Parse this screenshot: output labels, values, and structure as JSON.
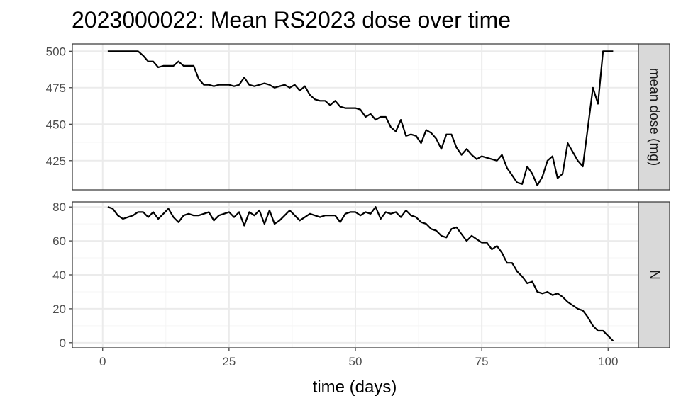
{
  "chart_data": {
    "type": "line",
    "title": "2023000022: Mean RS2023 dose over time",
    "xlabel": "time (days)",
    "xlim": [
      -6,
      106
    ],
    "x_ticks": [
      0,
      25,
      50,
      75,
      100
    ],
    "grid": true,
    "colors": {
      "line": "#000000",
      "strip_bg": "#d9d9d9",
      "grid_major": "#ebebeb",
      "grid_minor": "#f5f5f5",
      "panel_border": "#333333"
    },
    "facets": [
      {
        "strip_label": "mean dose (mg)",
        "ylim": [
          405,
          505
        ],
        "y_ticks": [
          425,
          450,
          475,
          500
        ],
        "x": [
          1,
          2,
          3,
          4,
          5,
          6,
          7,
          8,
          9,
          10,
          11,
          12,
          13,
          14,
          15,
          16,
          17,
          18,
          19,
          20,
          21,
          22,
          23,
          24,
          25,
          26,
          27,
          28,
          29,
          30,
          31,
          32,
          33,
          34,
          35,
          36,
          37,
          38,
          39,
          40,
          41,
          42,
          43,
          44,
          45,
          46,
          47,
          48,
          49,
          50,
          51,
          52,
          53,
          54,
          55,
          56,
          57,
          58,
          59,
          60,
          61,
          62,
          63,
          64,
          65,
          66,
          67,
          68,
          69,
          70,
          71,
          72,
          73,
          74,
          75,
          76,
          77,
          78,
          79,
          80,
          81,
          82,
          83,
          84,
          85,
          86,
          87,
          88,
          89,
          90,
          91,
          92,
          93,
          94,
          95,
          96,
          97,
          98,
          99,
          100,
          101
        ],
        "y": [
          500,
          500,
          500,
          500,
          500,
          500,
          500,
          497,
          493,
          493,
          489,
          490,
          490,
          490,
          493,
          490,
          490,
          490,
          481,
          477,
          477,
          476,
          477,
          477,
          477,
          476,
          477,
          482,
          477,
          476,
          477,
          478,
          477,
          475,
          476,
          477,
          475,
          477,
          473,
          476,
          470,
          467,
          466,
          466,
          463,
          466,
          462,
          461,
          461,
          461,
          460,
          455,
          457,
          453,
          455,
          455,
          448,
          445,
          453,
          442,
          443,
          442,
          437,
          446,
          444,
          440,
          433,
          443,
          443,
          434,
          429,
          433,
          429,
          426,
          428,
          427,
          426,
          425,
          429,
          420,
          415,
          410,
          409,
          421,
          416,
          408,
          414,
          425,
          428,
          413,
          416,
          437,
          431,
          425,
          421,
          448,
          475,
          464,
          500,
          500,
          500
        ]
      },
      {
        "strip_label": "N",
        "ylim": [
          -3,
          83
        ],
        "y_ticks": [
          0,
          20,
          40,
          60,
          80
        ],
        "x": [
          1,
          2,
          3,
          4,
          5,
          6,
          7,
          8,
          9,
          10,
          11,
          12,
          13,
          14,
          15,
          16,
          17,
          18,
          19,
          20,
          21,
          22,
          23,
          24,
          25,
          26,
          27,
          28,
          29,
          30,
          31,
          32,
          33,
          34,
          35,
          36,
          37,
          38,
          39,
          40,
          41,
          42,
          43,
          44,
          45,
          46,
          47,
          48,
          49,
          50,
          51,
          52,
          53,
          54,
          55,
          56,
          57,
          58,
          59,
          60,
          61,
          62,
          63,
          64,
          65,
          66,
          67,
          68,
          69,
          70,
          71,
          72,
          73,
          74,
          75,
          76,
          77,
          78,
          79,
          80,
          81,
          82,
          83,
          84,
          85,
          86,
          87,
          88,
          89,
          90,
          91,
          92,
          93,
          94,
          95,
          96,
          97,
          98,
          99,
          100,
          101
        ],
        "y": [
          80,
          79,
          75,
          73,
          74,
          75,
          77,
          77,
          74,
          77,
          73,
          76,
          79,
          74,
          71,
          75,
          76,
          75,
          75,
          76,
          77,
          72,
          75,
          76,
          77,
          74,
          77,
          69,
          77,
          75,
          78,
          70,
          78,
          70,
          72,
          75,
          78,
          75,
          72,
          74,
          76,
          75,
          74,
          75,
          75,
          75,
          71,
          76,
          77,
          77,
          75,
          77,
          76,
          80,
          73,
          77,
          76,
          77,
          74,
          78,
          75,
          74,
          71,
          70,
          67,
          66,
          63,
          62,
          67,
          68,
          64,
          60,
          63,
          61,
          59,
          59,
          55,
          57,
          53,
          47,
          47,
          42,
          39,
          35,
          36,
          30,
          29,
          30,
          28,
          29,
          27,
          24,
          22,
          20,
          19,
          15,
          10,
          7,
          7,
          4,
          1
        ]
      }
    ]
  }
}
